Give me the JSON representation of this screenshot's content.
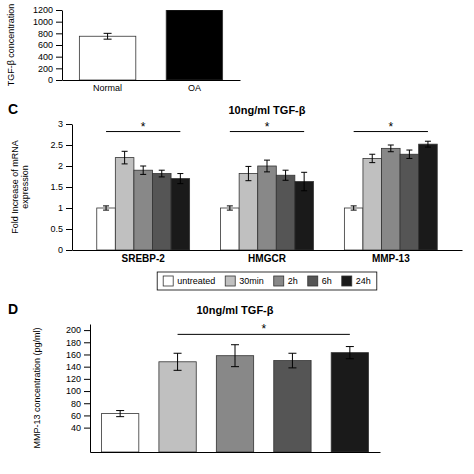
{
  "chart_data": [
    {
      "type": "bar",
      "ylabel": "TGF-β concentration",
      "categories": [
        "Normal",
        "OA"
      ],
      "values": [
        750,
        1200
      ],
      "errors": [
        50,
        0
      ],
      "colors": [
        "#ffffff",
        "#000000"
      ],
      "ylim": [
        0,
        1200
      ],
      "yticks": [
        0,
        200,
        400,
        600,
        800,
        1000,
        1200
      ]
    },
    {
      "type": "bar",
      "title": "10ng/ml TGF-β",
      "ylabel": "Fold Increase of mRNA\nexpression",
      "categories": [
        "SREBP-2",
        "HMGCR",
        "MMP-13"
      ],
      "series": [
        {
          "name": "untreated",
          "color": "#ffffff",
          "values": [
            1.0,
            1.0,
            1.0
          ],
          "errors": [
            0.05,
            0.05,
            0.05
          ]
        },
        {
          "name": "30min",
          "color": "#c0c0c0",
          "values": [
            2.2,
            1.82,
            2.18
          ],
          "errors": [
            0.15,
            0.17,
            0.1
          ]
        },
        {
          "name": "2h",
          "color": "#888888",
          "values": [
            1.9,
            2.0,
            2.42
          ],
          "errors": [
            0.1,
            0.14,
            0.08
          ]
        },
        {
          "name": "6h",
          "color": "#555555",
          "values": [
            1.82,
            1.78,
            2.28
          ],
          "errors": [
            0.08,
            0.12,
            0.1
          ]
        },
        {
          "name": "24h",
          "color": "#1a1a1a",
          "values": [
            1.7,
            1.63,
            2.52
          ],
          "errors": [
            0.12,
            0.22,
            0.07
          ]
        }
      ],
      "ylim": [
        0,
        3
      ],
      "yticks": [
        0,
        0.5,
        1,
        1.5,
        2,
        2.5,
        3
      ],
      "legend": "bottom",
      "annotations": [
        {
          "text": "C"
        },
        {
          "text": "*",
          "x": "SREBP-2",
          "y": 2.82
        },
        {
          "text": "*",
          "x": "HMGCR",
          "y": 2.82
        },
        {
          "text": "*",
          "x": "MMP-13",
          "y": 2.82
        }
      ]
    },
    {
      "type": "bar",
      "title": "10ng/ml TGF-β",
      "ylabel": "MMP-13 concentration (pg/ml)",
      "categories": [
        null,
        null,
        null,
        null,
        null
      ],
      "values": [
        63,
        148,
        158,
        150,
        163
      ],
      "errors": [
        5,
        14,
        18,
        12,
        10
      ],
      "colors": [
        "#ffffff",
        "#c0c0c0",
        "#888888",
        "#555555",
        "#1a1a1a"
      ],
      "ylim": [
        0,
        210
      ],
      "yticks": [
        40,
        60,
        80,
        100,
        120,
        140,
        160,
        180,
        200
      ],
      "tick_labels": "y",
      "annotations": [
        {
          "text": "D"
        },
        {
          "text": "*",
          "x": [
            1,
            4
          ],
          "y": 193
        }
      ]
    }
  ]
}
